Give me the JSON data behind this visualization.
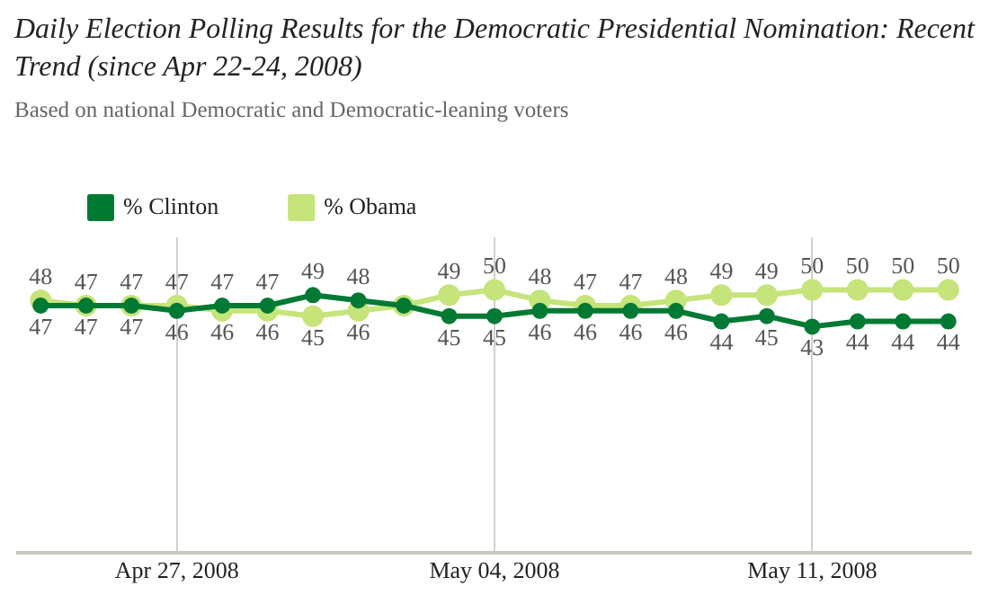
{
  "chart_data": {
    "type": "line",
    "title": "Daily Election Polling Results for the Democratic Presidential Nomination: Recent Trend (since Apr 22-24, 2008)",
    "subtitle": "Based on national Democratic and Democratic-leaning voters",
    "categories": [
      null,
      null,
      null,
      "Apr 27, 2008",
      null,
      null,
      null,
      null,
      null,
      null,
      "May 04, 2008",
      null,
      null,
      null,
      null,
      null,
      null,
      "May 11, 2008",
      null,
      null,
      null
    ],
    "series": [
      {
        "name": "% Clinton",
        "color": "#007a33",
        "values": [
          47,
          47,
          47,
          46,
          47,
          47,
          49,
          48,
          47,
          45,
          45,
          46,
          46,
          46,
          46,
          44,
          45,
          43,
          44,
          44,
          44
        ],
        "value_labels": [
          "47",
          "47",
          "47",
          "46",
          "47",
          "47",
          "49",
          "48",
          null,
          "45",
          "45",
          "46",
          "46",
          "46",
          "46",
          "44",
          "45",
          "43",
          "44",
          "44",
          "44"
        ]
      },
      {
        "name": "% Obama",
        "color": "#c5e47a",
        "values": [
          48,
          47,
          47,
          47,
          46,
          46,
          45,
          46,
          47,
          49,
          50,
          48,
          47,
          47,
          48,
          49,
          49,
          50,
          50,
          50,
          50
        ],
        "value_labels": [
          "48",
          "47",
          "47",
          "47",
          "46",
          "46",
          "45",
          "46",
          null,
          "49",
          "50",
          "48",
          "47",
          "47",
          "48",
          "49",
          "49",
          "50",
          "50",
          "50",
          "50"
        ]
      }
    ],
    "ylim": [
      0,
      60
    ],
    "grid": "x",
    "legend": "top left",
    "marker": "circle",
    "tick_labels": "x"
  }
}
